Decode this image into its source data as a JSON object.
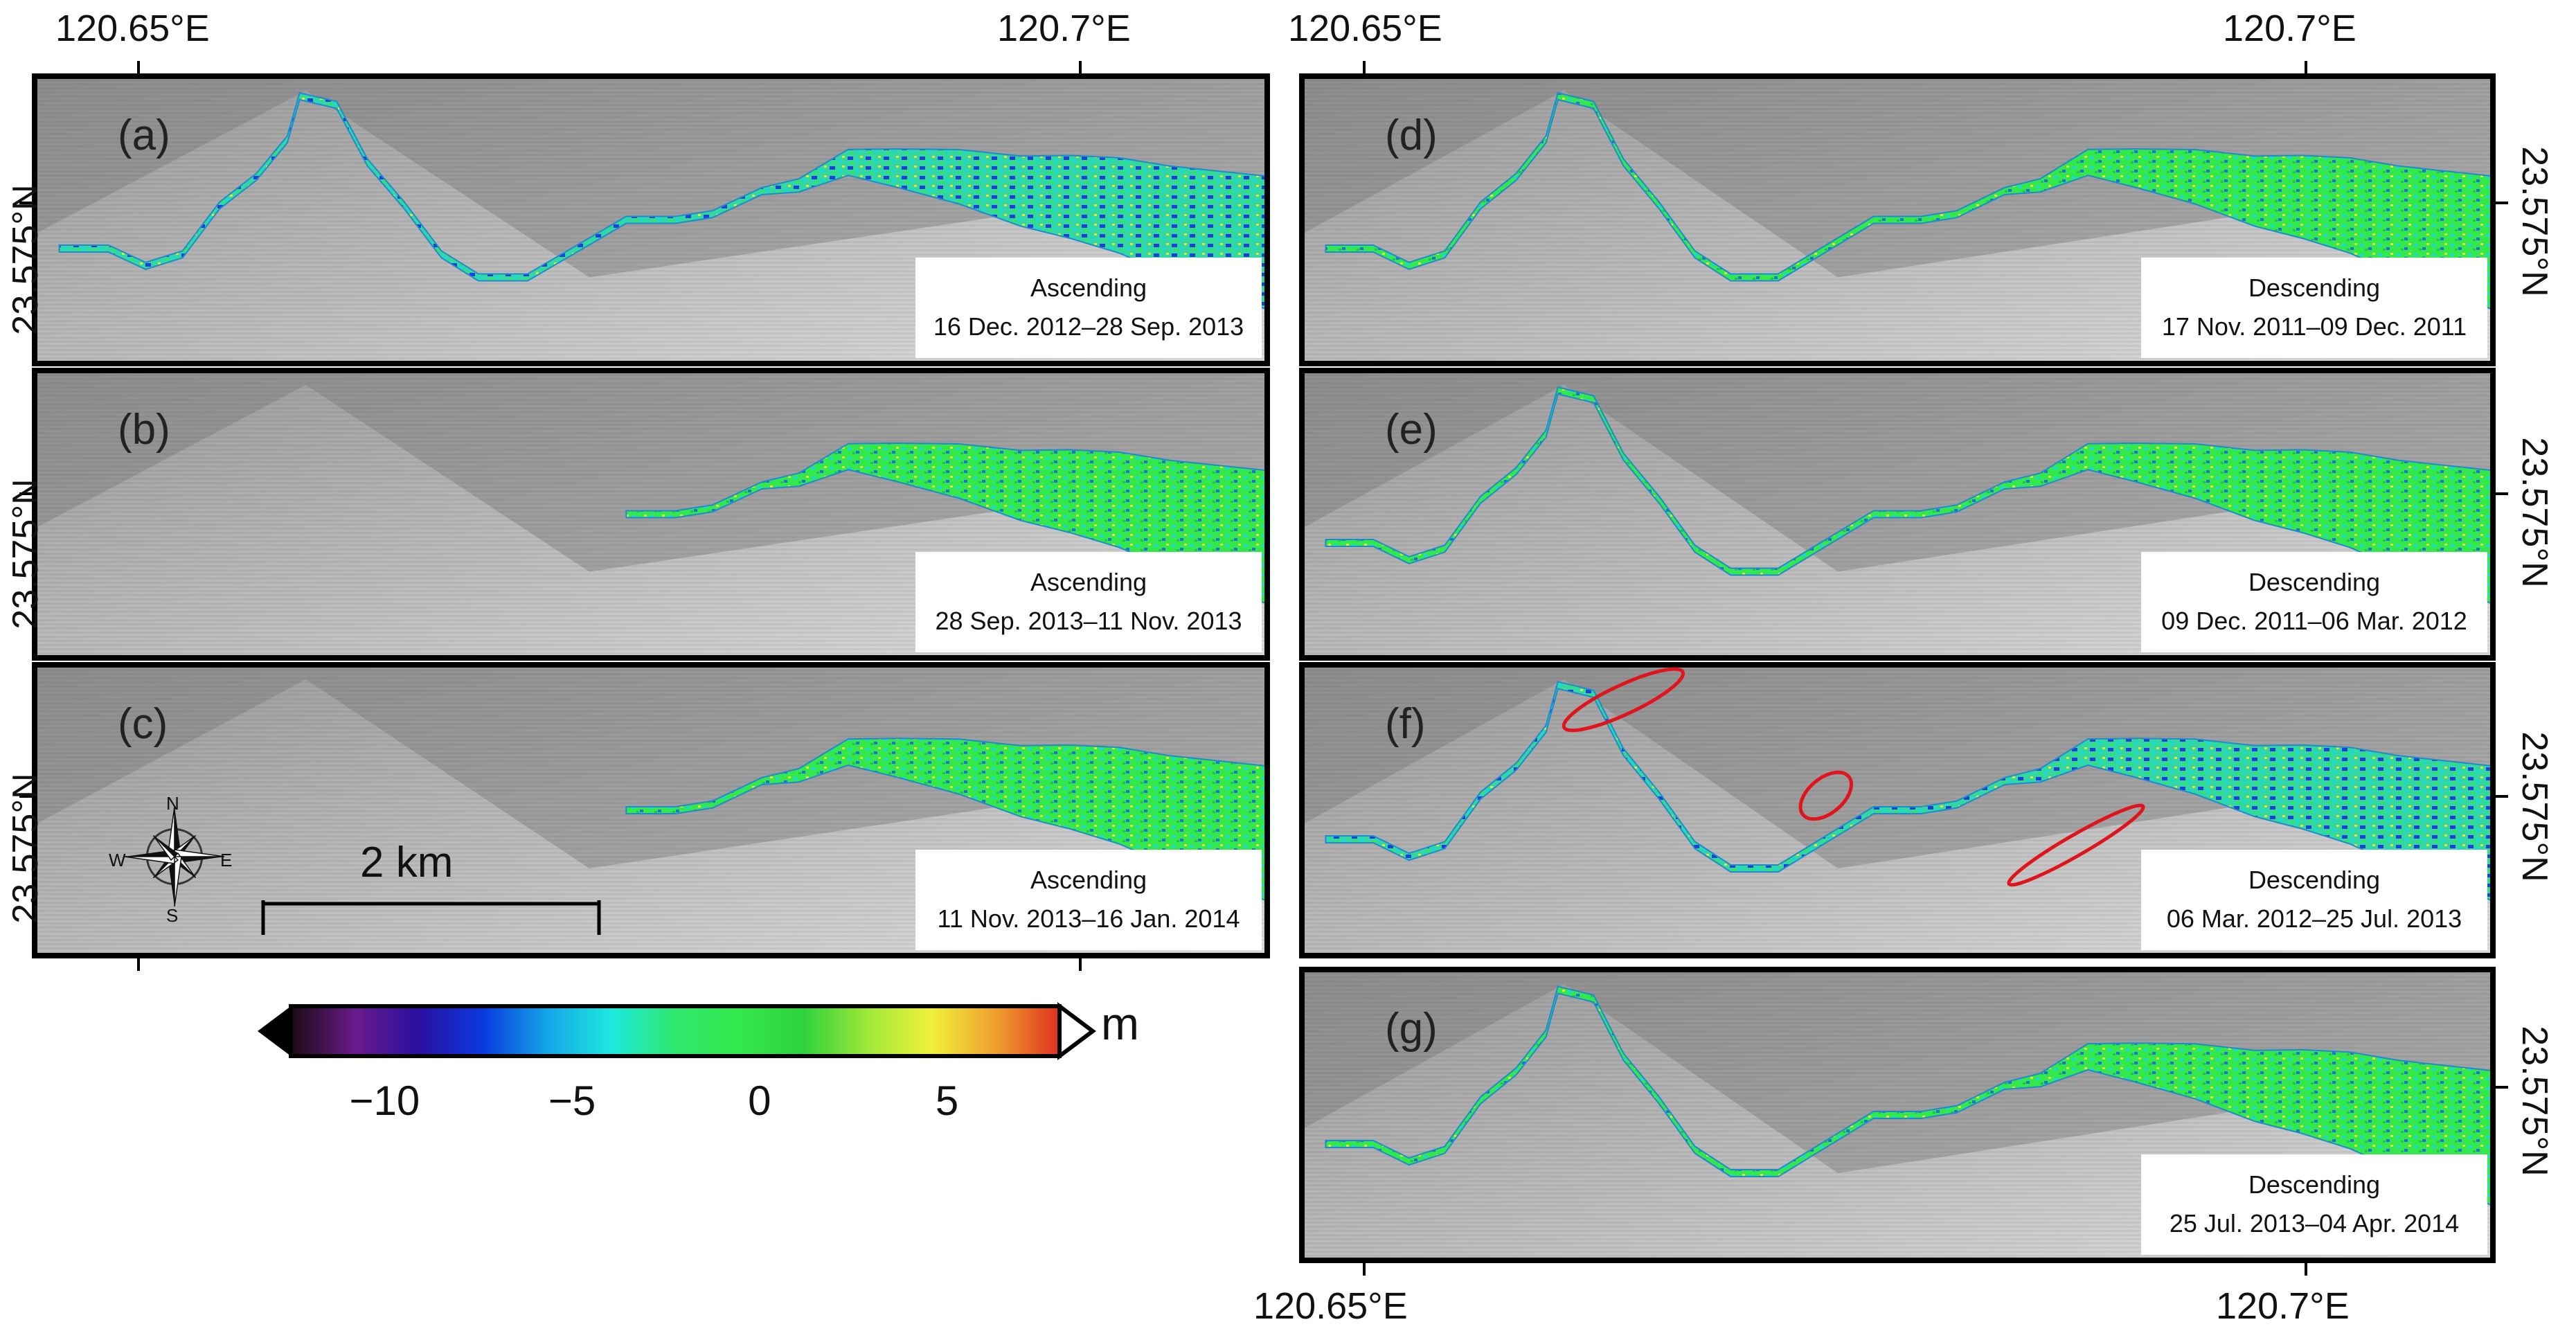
{
  "colors": {
    "frame": "#000000",
    "hill_dark": "#8e8e8e",
    "hill_light": "#e2e2e2",
    "river_green": "#33e84a",
    "river_cyan": "#1fd8c8",
    "river_blue": "#1f3fd8",
    "river_yellow": "#e8e23a",
    "outline_red": "#e0141c"
  },
  "axes": {
    "top_lon_left": [
      "120.65°E",
      "120.7°E"
    ],
    "top_lon_right": [
      "120.65°E",
      "120.7°E"
    ],
    "bottom_lon_right": [
      "120.65°E",
      "120.7°E"
    ],
    "lat_label": "23.575°N"
  },
  "panels": [
    {
      "id": "a",
      "label": "(a)",
      "orbit": "Ascending",
      "dates": "16 Dec. 2012–28 Sep. 2013",
      "coverage": "full"
    },
    {
      "id": "b",
      "label": "(b)",
      "orbit": "Ascending",
      "dates": "28 Sep. 2013–11 Nov. 2013",
      "coverage": "partial"
    },
    {
      "id": "c",
      "label": "(c)",
      "orbit": "Ascending",
      "dates": "11 Nov. 2013–16 Jan. 2014",
      "coverage": "partial"
    },
    {
      "id": "d",
      "label": "(d)",
      "orbit": "Descending",
      "dates": "17 Nov. 2011–09 Dec. 2011",
      "coverage": "full"
    },
    {
      "id": "e",
      "label": "(e)",
      "orbit": "Descending",
      "dates": "09 Dec. 2011–06 Mar. 2012",
      "coverage": "full"
    },
    {
      "id": "f",
      "label": "(f)",
      "orbit": "Descending",
      "dates": "06 Mar. 2012–25 Jul. 2013",
      "coverage": "full"
    },
    {
      "id": "g",
      "label": "(g)",
      "orbit": "Descending",
      "dates": "25 Jul. 2013–04 Apr. 2014",
      "coverage": "full"
    }
  ],
  "scale_bar": {
    "label": "2 km"
  },
  "compass": {
    "n": "N",
    "s": "S",
    "e": "E",
    "w": "W"
  },
  "colorbar": {
    "unit": "m",
    "min": -12.5,
    "max": 8,
    "ticks": [
      {
        "value": -10,
        "label": "−10"
      },
      {
        "value": -5,
        "label": "−5"
      },
      {
        "value": 0,
        "label": "0"
      },
      {
        "value": 5,
        "label": "5"
      }
    ],
    "stops": [
      "#1a0b12",
      "#6a1a8a",
      "#2a0fa0",
      "#0a3ae0",
      "#15a5e6",
      "#1de8e0",
      "#2ee86e",
      "#33e84a",
      "#2ed23c",
      "#9ee83a",
      "#f0f03a",
      "#f0a030",
      "#e03020"
    ]
  }
}
